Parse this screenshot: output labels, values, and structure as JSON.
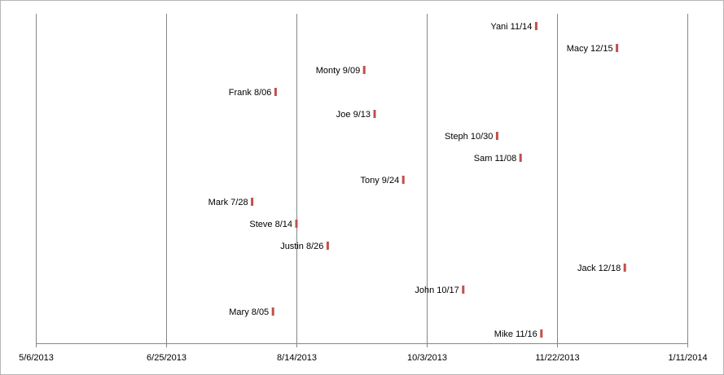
{
  "chart_data": {
    "type": "scatter",
    "title": "",
    "xlabel": "",
    "ylabel": "",
    "x_axis_type": "date",
    "xlim": [
      "2013-05-06",
      "2014-01-11"
    ],
    "x_ticks": [
      {
        "date": "2013-05-06",
        "label": "5/6/2013"
      },
      {
        "date": "2013-06-25",
        "label": "6/25/2013"
      },
      {
        "date": "2013-08-14",
        "label": "8/14/2013"
      },
      {
        "date": "2013-10-03",
        "label": "10/3/2013"
      },
      {
        "date": "2013-11-22",
        "label": "11/22/2013"
      },
      {
        "date": "2014-01-11",
        "label": "1/11/2014"
      }
    ],
    "vertical_gridlines": true,
    "marker_color": "#c0504d",
    "gridline_color": "#868686",
    "points": [
      {
        "label": "Yani 11/14",
        "date": "2013-11-14"
      },
      {
        "label": "Macy 12/15",
        "date": "2013-12-15"
      },
      {
        "label": "Monty 9/09",
        "date": "2013-09-09"
      },
      {
        "label": "Frank 8/06",
        "date": "2013-08-06"
      },
      {
        "label": "Joe 9/13",
        "date": "2013-09-13"
      },
      {
        "label": "Steph 10/30",
        "date": "2013-10-30"
      },
      {
        "label": "Sam 11/08",
        "date": "2013-11-08"
      },
      {
        "label": "Tony 9/24",
        "date": "2013-09-24"
      },
      {
        "label": "Mark 7/28",
        "date": "2013-07-28"
      },
      {
        "label": "Steve 8/14",
        "date": "2013-08-14"
      },
      {
        "label": "Justin 8/26",
        "date": "2013-08-26"
      },
      {
        "label": "Jack 12/18",
        "date": "2013-12-18"
      },
      {
        "label": "John 10/17",
        "date": "2013-10-17"
      },
      {
        "label": "Mary 8/05",
        "date": "2013-08-05"
      },
      {
        "label": "Mike 11/16",
        "date": "2013-11-16"
      }
    ]
  }
}
